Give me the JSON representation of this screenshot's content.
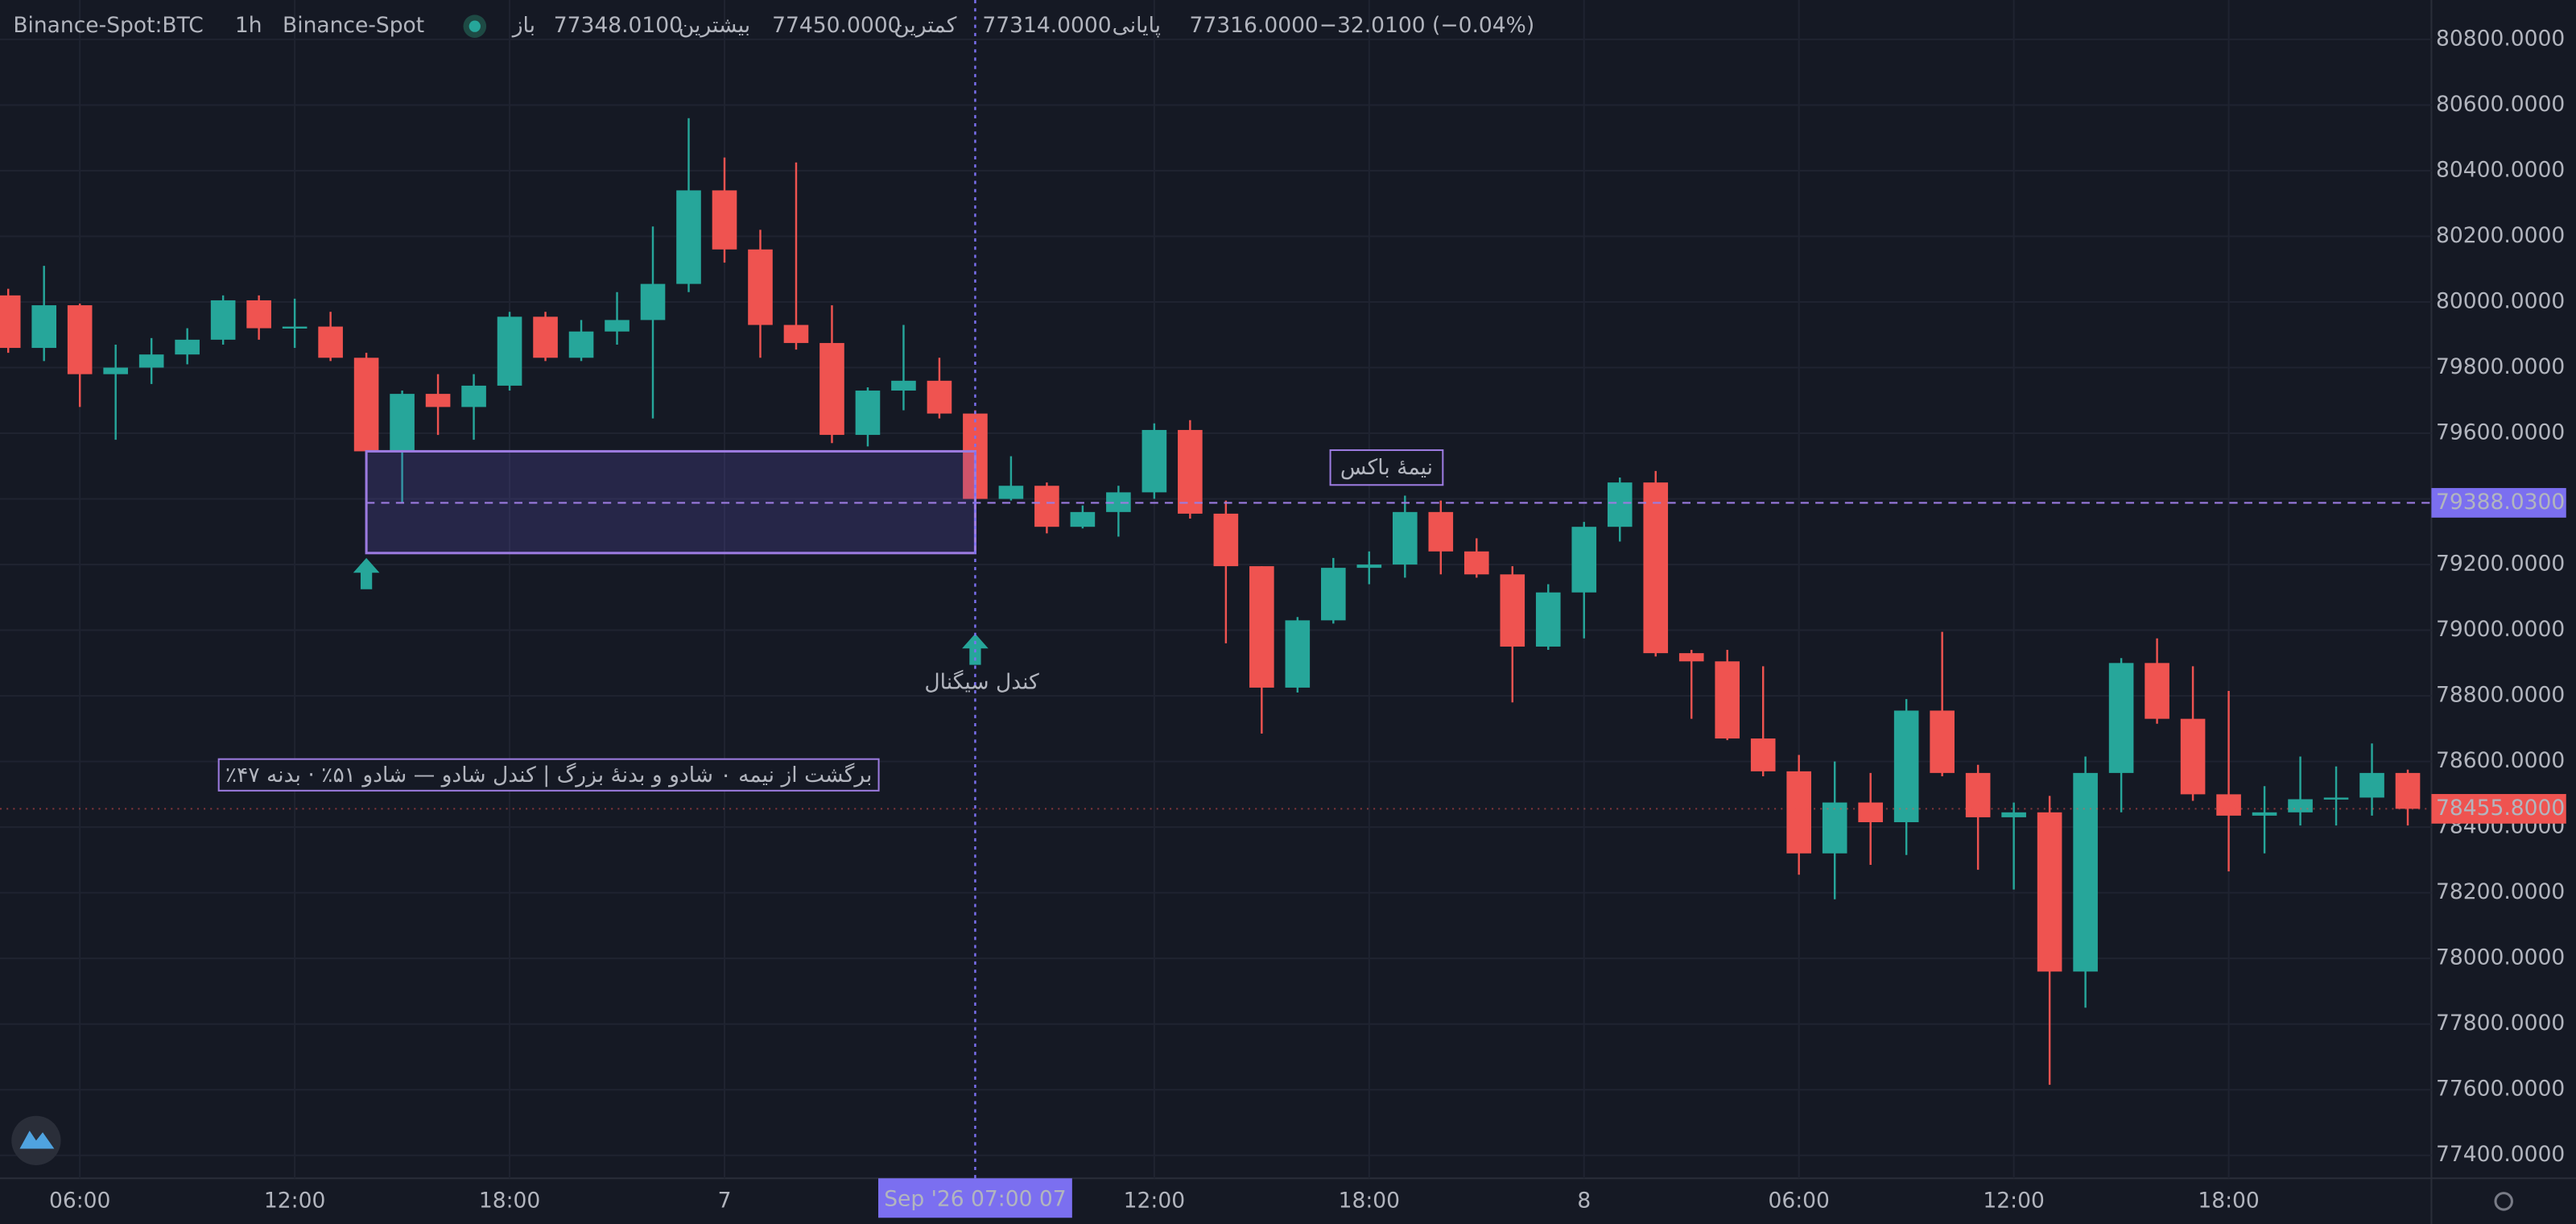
{
  "chart_data": {
    "type": "candlestick",
    "header": {
      "symbol": "Binance-Spot:BTC",
      "interval": "1h",
      "exchange": "Binance-Spot",
      "open_label": "باز",
      "open": "77348.0100",
      "high_label": "بیشترین",
      "high": "77450.0000",
      "low_label": "کمترین",
      "low": "77314.0000",
      "close_label": "پایانی",
      "close": "77316.0000",
      "change": "−32.0100 (−0.04%)"
    },
    "categories": [
      null,
      null,
      "06:00",
      null,
      null,
      null,
      null,
      null,
      "12:00",
      null,
      null,
      null,
      null,
      null,
      "18:00",
      null,
      null,
      null,
      null,
      null,
      "7",
      null,
      null,
      null,
      null,
      null,
      null,
      null,
      null,
      null,
      null,
      null,
      "12:00",
      null,
      null,
      null,
      null,
      null,
      "18:00",
      null,
      null,
      null,
      null,
      null,
      "8",
      null,
      null,
      null,
      null,
      null,
      "06:00",
      null,
      null,
      null,
      null,
      null,
      "12:00",
      null,
      null,
      null,
      null,
      null,
      "18:00",
      null,
      null,
      null,
      null,
      null
    ],
    "open": [
      80020,
      79860,
      79990,
      79780,
      79800,
      79840,
      79885,
      80005,
      79920,
      79925,
      79830,
      79545,
      79720,
      79680,
      79745,
      79955,
      79830,
      79910,
      79945,
      80055,
      80340,
      80160,
      79930,
      79875,
      79595,
      79730,
      79760,
      79660,
      79400,
      79440,
      79315,
      79360,
      79420,
      79610,
      79355,
      79195,
      78825,
      79030,
      79190,
      79200,
      79360,
      79240,
      79170,
      78950,
      79115,
      79315,
      79450,
      78930,
      78905,
      78670,
      78570,
      78320,
      78475,
      78415,
      78755,
      78565,
      78430,
      78445,
      77960,
      78565,
      78900,
      78730,
      78500,
      78435,
      78445,
      78485,
      78490,
      78565
    ],
    "high": [
      80040,
      80110,
      79995,
      79870,
      79890,
      79920,
      80020,
      80020,
      80010,
      79970,
      79845,
      79730,
      79780,
      79780,
      79970,
      79970,
      79945,
      80030,
      80230,
      80560,
      80440,
      80220,
      80425,
      79990,
      79740,
      79930,
      79830,
      79670,
      79530,
      79450,
      79380,
      79440,
      79630,
      79640,
      79395,
      79195,
      79040,
      79220,
      79240,
      79410,
      79395,
      79280,
      79195,
      79140,
      79330,
      79465,
      79485,
      78940,
      78940,
      78890,
      78620,
      78600,
      78565,
      78790,
      78995,
      78590,
      78475,
      78495,
      78615,
      78915,
      78975,
      78890,
      78815,
      78525,
      78615,
      78585,
      78655,
      78575
    ],
    "low": [
      79845,
      79820,
      79680,
      79580,
      79750,
      79810,
      79870,
      79885,
      79860,
      79820,
      79535,
      79390,
      79595,
      79580,
      79730,
      79820,
      79820,
      79870,
      79645,
      80030,
      80120,
      79830,
      79855,
      79570,
      79560,
      79670,
      79645,
      79380,
      79395,
      79295,
      79310,
      79285,
      79400,
      79340,
      78960,
      78685,
      78810,
      79020,
      79140,
      79160,
      79170,
      79160,
      78780,
      78940,
      78975,
      79270,
      78920,
      78730,
      78665,
      78555,
      78255,
      78180,
      78285,
      78315,
      78555,
      78270,
      78210,
      77615,
      77850,
      78445,
      78715,
      78480,
      78265,
      78320,
      78405,
      78405,
      78435,
      78405
    ],
    "close": [
      79860,
      79990,
      79780,
      79800,
      79840,
      79885,
      80005,
      79920,
      79925,
      79830,
      79545,
      79720,
      79680,
      79745,
      79955,
      79830,
      79910,
      79945,
      80055,
      80340,
      80160,
      79930,
      79875,
      79595,
      79730,
      79760,
      79660,
      79400,
      79440,
      79315,
      79360,
      79420,
      79610,
      79355,
      79195,
      78825,
      79030,
      79190,
      79200,
      79360,
      79240,
      79170,
      78950,
      79115,
      79315,
      79450,
      78930,
      78905,
      78670,
      78570,
      78320,
      78475,
      78415,
      78755,
      78565,
      78430,
      78445,
      77960,
      78565,
      78900,
      78730,
      78500,
      78435,
      78445,
      78485,
      78490,
      78565,
      78455.8
    ],
    "up_color": "#26a69a",
    "down_color": "#ef5350",
    "ylim": [
      77330,
      80920
    ],
    "yticks": [
      {
        "value": 77400,
        "label": "77400.0000"
      },
      {
        "value": 77600,
        "label": "77600.0000"
      },
      {
        "value": 77800,
        "label": "77800.0000"
      },
      {
        "value": 78000,
        "label": "78000.0000"
      },
      {
        "value": 78200,
        "label": "78200.0000"
      },
      {
        "value": 78400,
        "label": "78400.0000"
      },
      {
        "value": 78600,
        "label": "78600.0000"
      },
      {
        "value": 78800,
        "label": "78800.0000"
      },
      {
        "value": 79000,
        "label": "79000.0000"
      },
      {
        "value": 79200,
        "label": "79200.0000"
      },
      {
        "value": 79400,
        "label": "79400.0000"
      },
      {
        "value": 79600,
        "label": "79600.0000"
      },
      {
        "value": 79800,
        "label": "79800.0000"
      },
      {
        "value": 80000,
        "label": "80000.0000"
      },
      {
        "value": 80200,
        "label": "80200.0000"
      },
      {
        "value": 80400,
        "label": "80400.0000"
      },
      {
        "value": 80600,
        "label": "80600.0000"
      },
      {
        "value": 80800,
        "label": "80800.0000"
      }
    ],
    "grid": true,
    "last_price": {
      "value": 78455.8,
      "label": "78455.8000"
    },
    "box": {
      "start": 10,
      "end": 27,
      "top": 79545,
      "bottom": 79235,
      "mid": {
        "value": 79388.03,
        "label": "79388.0300"
      },
      "label": "نیمهٔ باکس",
      "color": "#9c7be0"
    },
    "signals": [
      {
        "at": 10
      },
      {
        "at": 27,
        "label": "کندل سیگنال"
      }
    ],
    "note": "٪برگشت از نیمه ۰ شادو و بدنهٔ بزرگ | کندل شادو — شادو ۵۱٪ · بدنه ۴۷",
    "crosshair": {
      "at": 27,
      "label": "Sep '26  07:00 07",
      "color": "#7b6ff0"
    }
  }
}
